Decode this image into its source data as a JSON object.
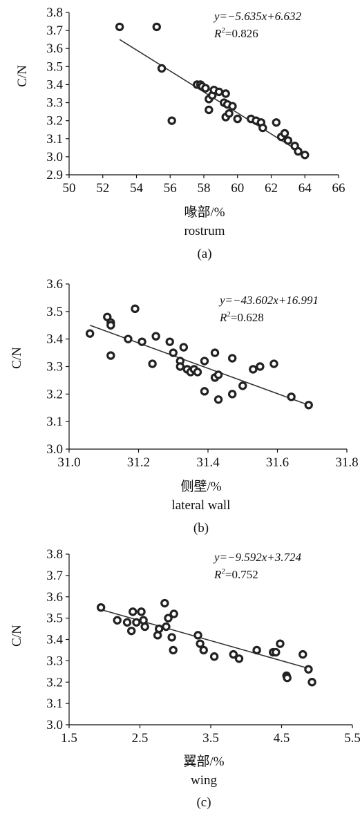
{
  "chart_data": [
    {
      "type": "scatter",
      "panel": "(a)",
      "ylabel": "C/N",
      "xlabel_cn": "喙部/%",
      "xlabel_en": "rostrum",
      "xlim": [
        50,
        66
      ],
      "ylim": [
        2.9,
        3.8
      ],
      "x_ticks": [
        "50",
        "52",
        "54",
        "56",
        "58",
        "60",
        "62",
        "64",
        "66"
      ],
      "y_ticks": [
        "2.9",
        "3.0",
        "3.1",
        "3.2",
        "3.3",
        "3.4",
        "3.5",
        "3.6",
        "3.7",
        "3.8"
      ],
      "equation": "y=−5.635x+6.632",
      "r2_label": "R",
      "r2_value": "=0.826",
      "fit": {
        "x": [
          53.0,
          64.0
        ],
        "y": [
          3.65,
          3.01
        ]
      },
      "points": [
        [
          53.0,
          3.72
        ],
        [
          55.2,
          3.72
        ],
        [
          55.5,
          3.49
        ],
        [
          56.1,
          3.2
        ],
        [
          57.6,
          3.4
        ],
        [
          57.8,
          3.4
        ],
        [
          57.9,
          3.39
        ],
        [
          58.1,
          3.38
        ],
        [
          58.3,
          3.32
        ],
        [
          58.3,
          3.26
        ],
        [
          58.5,
          3.34
        ],
        [
          58.6,
          3.37
        ],
        [
          58.9,
          3.36
        ],
        [
          59.2,
          3.3
        ],
        [
          59.3,
          3.35
        ],
        [
          59.4,
          3.29
        ],
        [
          59.3,
          3.22
        ],
        [
          59.5,
          3.24
        ],
        [
          59.7,
          3.28
        ],
        [
          60.0,
          3.21
        ],
        [
          60.8,
          3.21
        ],
        [
          61.1,
          3.2
        ],
        [
          61.4,
          3.19
        ],
        [
          61.5,
          3.16
        ],
        [
          62.3,
          3.19
        ],
        [
          62.6,
          3.11
        ],
        [
          62.8,
          3.13
        ],
        [
          63.0,
          3.09
        ],
        [
          63.4,
          3.06
        ],
        [
          63.6,
          3.03
        ],
        [
          64.0,
          3.01
        ]
      ]
    },
    {
      "type": "scatter",
      "panel": "(b)",
      "ylabel": "C/N",
      "xlabel_cn": "侧壁/%",
      "xlabel_en": "lateral wall",
      "xlim": [
        31.0,
        31.8
      ],
      "ylim": [
        3.0,
        3.6
      ],
      "x_ticks": [
        "31.0",
        "31.2",
        "31.4",
        "31.6",
        "31.8"
      ],
      "y_ticks": [
        "3.0",
        "3.1",
        "3.2",
        "3.3",
        "3.4",
        "3.5",
        "3.6"
      ],
      "equation": "y=−43.602x+16.991",
      "r2_label": "R",
      "r2_value": "=0.628",
      "fit": {
        "x": [
          31.06,
          31.69
        ],
        "y": [
          3.45,
          3.16
        ]
      },
      "points": [
        [
          31.06,
          3.42
        ],
        [
          31.11,
          3.48
        ],
        [
          31.12,
          3.46
        ],
        [
          31.12,
          3.45
        ],
        [
          31.12,
          3.34
        ],
        [
          31.17,
          3.4
        ],
        [
          31.19,
          3.51
        ],
        [
          31.21,
          3.39
        ],
        [
          31.24,
          3.31
        ],
        [
          31.25,
          3.41
        ],
        [
          31.29,
          3.39
        ],
        [
          31.3,
          3.35
        ],
        [
          31.32,
          3.32
        ],
        [
          31.32,
          3.3
        ],
        [
          31.33,
          3.37
        ],
        [
          31.34,
          3.29
        ],
        [
          31.35,
          3.28
        ],
        [
          31.36,
          3.29
        ],
        [
          31.37,
          3.28
        ],
        [
          31.39,
          3.32
        ],
        [
          31.39,
          3.21
        ],
        [
          31.42,
          3.35
        ],
        [
          31.42,
          3.26
        ],
        [
          31.43,
          3.27
        ],
        [
          31.43,
          3.18
        ],
        [
          31.47,
          3.33
        ],
        [
          31.47,
          3.2
        ],
        [
          31.5,
          3.23
        ],
        [
          31.53,
          3.29
        ],
        [
          31.55,
          3.3
        ],
        [
          31.59,
          3.31
        ],
        [
          31.64,
          3.19
        ],
        [
          31.69,
          3.16
        ]
      ]
    },
    {
      "type": "scatter",
      "panel": "(c)",
      "ylabel": "C/N",
      "xlabel_cn": "翼部/%",
      "xlabel_en": "wing",
      "xlim": [
        1.5,
        5.5
      ],
      "ylim": [
        3.0,
        3.8
      ],
      "x_ticks": [
        "1.5",
        "2.5",
        "3.5",
        "4.5",
        "5.5"
      ],
      "y_ticks": [
        "3.0",
        "3.1",
        "3.2",
        "3.3",
        "3.4",
        "3.5",
        "3.6",
        "3.7",
        "3.8"
      ],
      "equation": "y=−9.592x+3.724",
      "r2_label": "R",
      "r2_value": "=0.752",
      "fit": {
        "x": [
          1.95,
          4.93
        ],
        "y": [
          3.54,
          3.26
        ]
      },
      "points": [
        [
          1.95,
          3.55
        ],
        [
          2.18,
          3.49
        ],
        [
          2.32,
          3.48
        ],
        [
          2.38,
          3.44
        ],
        [
          2.4,
          3.53
        ],
        [
          2.45,
          3.48
        ],
        [
          2.52,
          3.53
        ],
        [
          2.55,
          3.49
        ],
        [
          2.57,
          3.46
        ],
        [
          2.75,
          3.42
        ],
        [
          2.77,
          3.45
        ],
        [
          2.85,
          3.57
        ],
        [
          2.87,
          3.46
        ],
        [
          2.9,
          3.5
        ],
        [
          2.95,
          3.41
        ],
        [
          2.97,
          3.35
        ],
        [
          2.98,
          3.52
        ],
        [
          3.32,
          3.42
        ],
        [
          3.35,
          3.38
        ],
        [
          3.4,
          3.35
        ],
        [
          3.55,
          3.32
        ],
        [
          3.82,
          3.33
        ],
        [
          3.9,
          3.31
        ],
        [
          4.15,
          3.35
        ],
        [
          4.38,
          3.34
        ],
        [
          4.42,
          3.34
        ],
        [
          4.48,
          3.38
        ],
        [
          4.57,
          3.23
        ],
        [
          4.58,
          3.22
        ],
        [
          4.8,
          3.33
        ],
        [
          4.88,
          3.26
        ],
        [
          4.93,
          3.2
        ]
      ]
    }
  ]
}
